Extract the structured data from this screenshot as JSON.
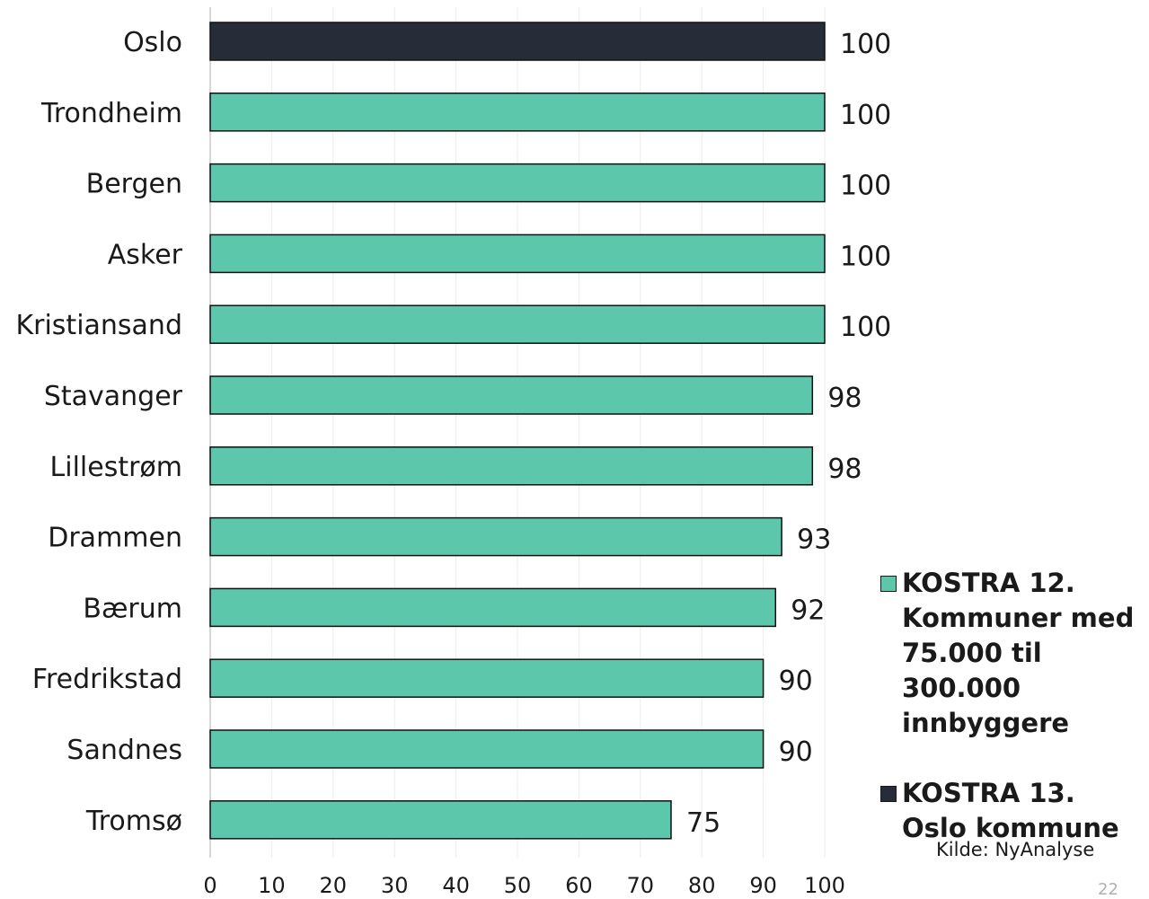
{
  "chart_data": {
    "type": "bar",
    "orientation": "horizontal",
    "categories": [
      "Oslo",
      "Trondheim",
      "Bergen",
      "Asker",
      "Kristiansand",
      "Stavanger",
      "Lillestrøm",
      "Drammen",
      "Bærum",
      "Fredrikstad",
      "Sandnes",
      "Tromsø"
    ],
    "values": [
      100,
      100,
      100,
      100,
      100,
      98,
      98,
      93,
      92,
      90,
      90,
      75
    ],
    "value_labels": [
      "100",
      "100",
      "100",
      "100",
      "100",
      "98",
      "98",
      "93",
      "92",
      "90",
      "90",
      "75"
    ],
    "bar_series": [
      "KOSTRA 13. Oslo kommune",
      "KOSTRA 12. Kommuner med 75.000 til 300.000 innbyggere",
      "KOSTRA 12. Kommuner med 75.000 til 300.000 innbyggere",
      "KOSTRA 12. Kommuner med 75.000 til 300.000 innbyggere",
      "KOSTRA 12. Kommuner med 75.000 til 300.000 innbyggere",
      "KOSTRA 12. Kommuner med 75.000 til 300.000 innbyggere",
      "KOSTRA 12. Kommuner med 75.000 til 300.000 innbyggere",
      "KOSTRA 12. Kommuner med 75.000 til 300.000 innbyggere",
      "KOSTRA 12. Kommuner med 75.000 til 300.000 innbyggere",
      "KOSTRA 12. Kommuner med 75.000 til 300.000 innbyggere",
      "KOSTRA 12. Kommuner med 75.000 til 300.000 innbyggere",
      "KOSTRA 12. Kommuner med 75.000 til 300.000 innbyggere"
    ],
    "xlim": [
      0,
      100
    ],
    "x_ticks": [
      "0",
      "10",
      "20",
      "30",
      "40",
      "50",
      "60",
      "70",
      "80",
      "90",
      "100"
    ],
    "grid": true,
    "legend_position": "bottom-right",
    "legend": [
      {
        "name": "KOSTRA 12. Kommuner med 75.000 til 300.000 innbyggere",
        "color": "#5cc7aa"
      },
      {
        "name": "KOSTRA 13. Oslo kommune",
        "color": "#262c38"
      }
    ]
  },
  "source_text": "Kilde: NyAnalyse",
  "page_number": "22"
}
